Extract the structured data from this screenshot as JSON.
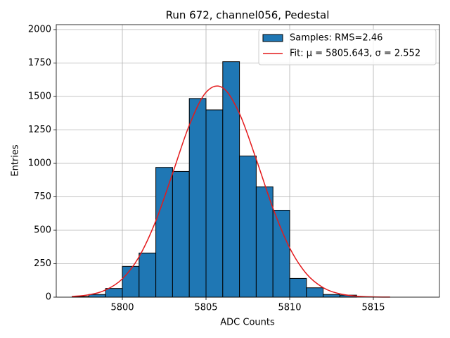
{
  "chart_data": {
    "type": "histogram",
    "title": "Run 672, channel056, Pedestal",
    "xlabel": "ADC Counts",
    "ylabel": "Entries",
    "xlim": [
      5796.05,
      5818.95
    ],
    "ylim": [
      0,
      2037
    ],
    "xticks": [
      5800,
      5805,
      5810,
      5815
    ],
    "yticks": [
      0,
      250,
      500,
      750,
      1000,
      1250,
      1500,
      1750,
      2000
    ],
    "grid": true,
    "legend": "upper right",
    "series": [
      {
        "name": "Samples: RMS=2.46",
        "type": "histogram",
        "color": "#1f77b4",
        "bins": [
          5797,
          5798,
          5799,
          5800,
          5801,
          5802,
          5803,
          5804,
          5805,
          5806,
          5807,
          5808,
          5809,
          5810,
          5811,
          5812,
          5813,
          5814,
          5815,
          5816,
          5817,
          5818
        ],
        "values": [
          5,
          20,
          65,
          230,
          330,
          970,
          940,
          1485,
          1400,
          1760,
          1055,
          825,
          650,
          140,
          70,
          20,
          15,
          0,
          0,
          0,
          0
        ]
      },
      {
        "name": "Fit: μ = 5805.643, σ = 2.552",
        "type": "line",
        "color": "#e41a1c",
        "x": [
          5797,
          5798,
          5799,
          5800,
          5801,
          5802,
          5803,
          5804,
          5805,
          5806,
          5807,
          5808,
          5809,
          5810,
          5811,
          5812,
          5813,
          5814,
          5815,
          5816
        ],
        "values": [
          5.1,
          17.8,
          53.4,
          137,
          302,
          570,
          924,
          1285,
          1531,
          1565,
          1372,
          1031,
          665,
          368,
          175,
          71,
          24.8,
          7.4,
          1.9,
          0.4
        ]
      }
    ]
  }
}
